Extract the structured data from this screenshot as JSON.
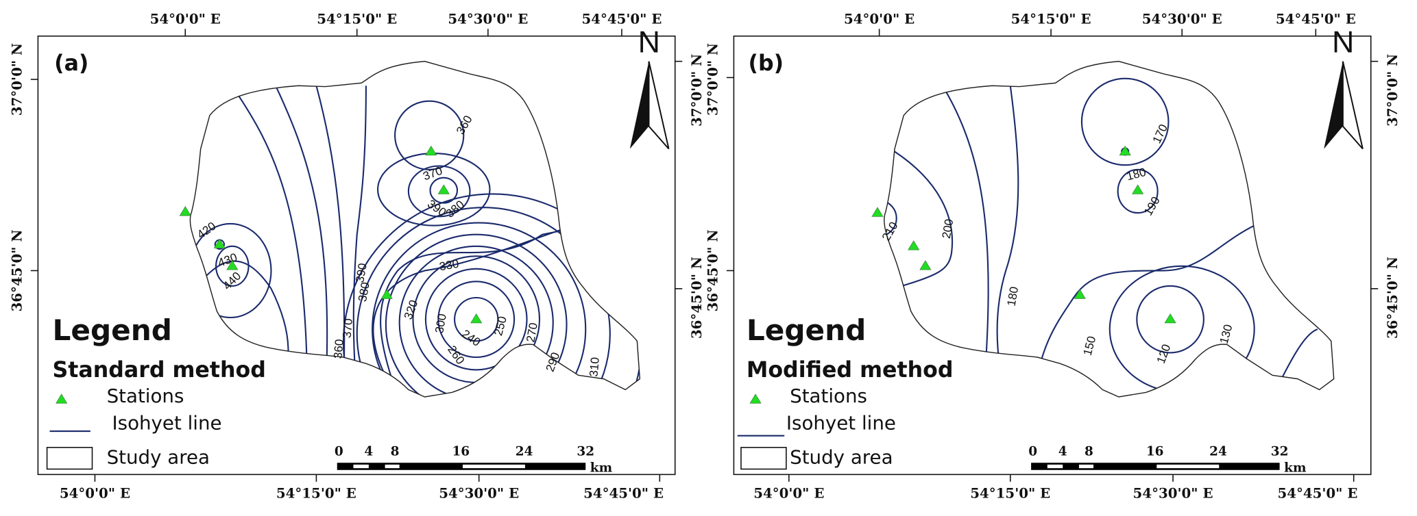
{
  "panels": {
    "a": {
      "label": "(a)",
      "method": "Standard method",
      "isohyet_values": [
        "360",
        "370",
        "390",
        "380",
        "420",
        "430",
        "440",
        "390",
        "380",
        "370",
        "360",
        "330",
        "320",
        "300",
        "240",
        "260",
        "250",
        "270",
        "290",
        "310"
      ]
    },
    "b": {
      "label": "(b)",
      "method": "Modified method",
      "isohyet_values": [
        "170",
        "180",
        "190",
        "210",
        "200",
        "180",
        "150",
        "120",
        "130"
      ]
    }
  },
  "coords": {
    "top_lon": [
      "54°0'0\" E",
      "54°15'0\" E",
      "54°30'0\" E",
      "54°45'0\" E"
    ],
    "bottom_lon": [
      "54°0'0\" E",
      "54°15'0\" E",
      "54°30'0\" E",
      "54°45'0\" E"
    ],
    "lat": [
      "37°0'0\" N",
      "36°45'0\" N"
    ]
  },
  "legend": {
    "title": "Legend",
    "stations": "Stations",
    "isohyet": "Isohyet line",
    "study_area": "Study area"
  },
  "scale_bar": {
    "ticks": [
      "0",
      "4",
      "8",
      "16",
      "24",
      "32"
    ],
    "unit": "km"
  },
  "north": "N",
  "colors": {
    "isohyet": "#1a2a6c",
    "station": "#22dd22",
    "boundary": "#222222"
  }
}
